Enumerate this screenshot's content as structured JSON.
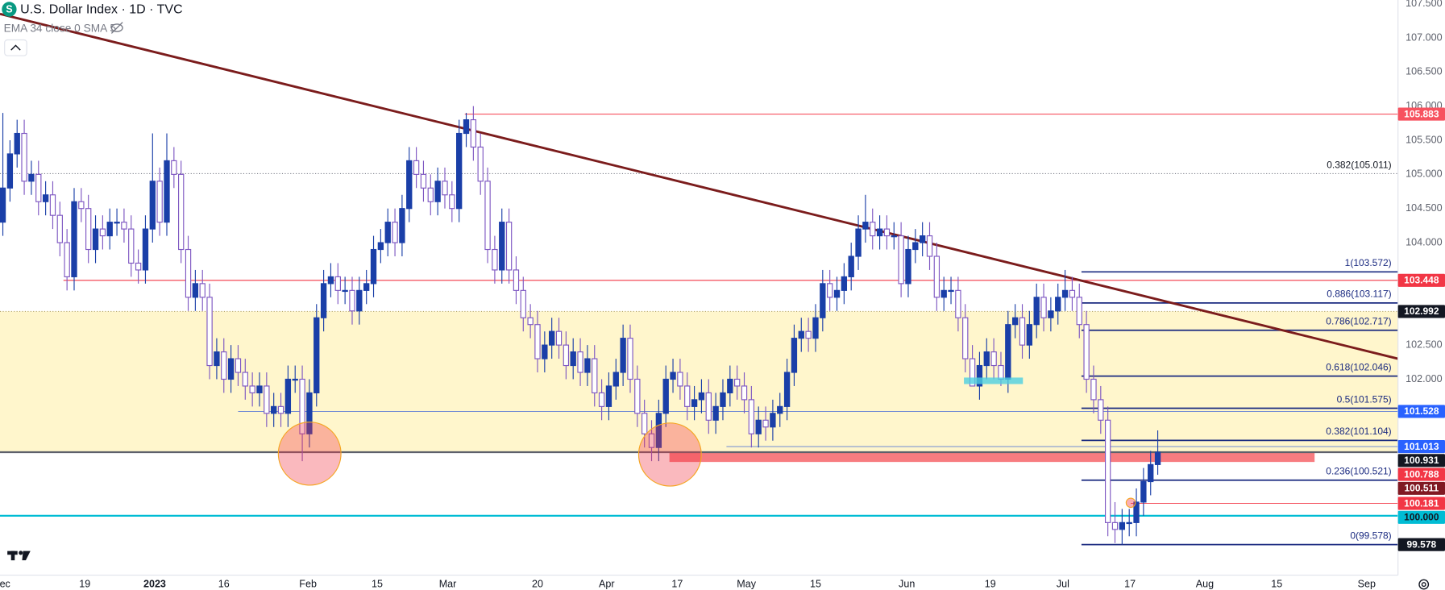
{
  "chart_data": {
    "type": "candlestick",
    "title": "U.S. Dollar Index · 1D · TVC",
    "subtitle": "EMA 34 close 0 SMA 5",
    "logo": "S",
    "up_color": "#1a3fa8",
    "down_color": "#7e57c2",
    "open": [
      104.3,
      104.8,
      105.3,
      105.6,
      104.9,
      105.0,
      104.6,
      104.7,
      104.4,
      104.0,
      103.5,
      104.6,
      104.5,
      103.9,
      104.2,
      104.1,
      104.3,
      104.3,
      104.2,
      103.7,
      103.6,
      104.2,
      104.9,
      104.3,
      105.2,
      105.0,
      103.9,
      103.2,
      103.4,
      103.2,
      102.2,
      102.4,
      102.0,
      102.3,
      102.1,
      101.9,
      101.8,
      101.9,
      101.5,
      101.6,
      101.5,
      102.0,
      102.0,
      101.2,
      101.8,
      102.9,
      103.4,
      103.5,
      103.3,
      103.3,
      103.0,
      103.3,
      103.4,
      103.9,
      104.0,
      104.3,
      104.0,
      104.5,
      105.2,
      105.0,
      104.8,
      104.6,
      104.9,
      104.7,
      104.5,
      105.6,
      105.8,
      105.4,
      104.9,
      103.9,
      103.6,
      104.3,
      103.6,
      103.3,
      102.9,
      102.8,
      102.3,
      102.5,
      102.7,
      102.5,
      102.2,
      102.4,
      102.1,
      102.3,
      101.8,
      101.6,
      101.9,
      102.1,
      102.6,
      102.0,
      101.5,
      101.2,
      101.0,
      101.5,
      102.0,
      102.1,
      101.9,
      101.6,
      101.7,
      101.8,
      101.4,
      101.6,
      101.8,
      102.0,
      101.9,
      101.7,
      101.2,
      101.4,
      101.3,
      101.5,
      101.6,
      102.1,
      102.6,
      102.7,
      102.6,
      102.9,
      103.4,
      103.2,
      103.3,
      103.5,
      103.8,
      104.2,
      104.3,
      104.1,
      104.2,
      104.1,
      104.1,
      103.4,
      103.9,
      104.0,
      104.1,
      103.8,
      103.2,
      103.3,
      103.3,
      102.9,
      102.3,
      101.9,
      102.2,
      102.4,
      102.2,
      102.0,
      102.8,
      102.9,
      102.5,
      102.8,
      103.2,
      102.9,
      103.0,
      103.2,
      103.3,
      103.2,
      102.8,
      102.0,
      101.7,
      101.4,
      99.9,
      99.8,
      99.9,
      99.9,
      100.2,
      100.5,
      100.75
    ],
    "high": [
      105.9,
      105.5,
      105.8,
      105.8,
      105.2,
      105.2,
      104.9,
      104.9,
      104.6,
      104.2,
      104.8,
      104.8,
      104.7,
      104.4,
      104.4,
      104.5,
      104.5,
      104.5,
      104.4,
      103.9,
      104.4,
      105.6,
      105.1,
      105.6,
      105.4,
      105.2,
      104.1,
      103.6,
      103.6,
      103.4,
      102.6,
      102.6,
      102.5,
      102.5,
      102.3,
      102.1,
      102.1,
      102.1,
      101.8,
      101.8,
      102.2,
      102.2,
      102.2,
      102.0,
      103.1,
      103.6,
      103.7,
      103.7,
      103.5,
      103.5,
      103.5,
      103.6,
      104.1,
      104.2,
      104.5,
      104.5,
      104.7,
      105.4,
      105.4,
      105.2,
      105.0,
      105.1,
      105.1,
      104.9,
      105.8,
      105.9,
      106.0,
      105.6,
      105.1,
      104.1,
      104.5,
      104.5,
      103.8,
      103.5,
      103.1,
      103.0,
      102.7,
      102.9,
      102.9,
      102.7,
      102.6,
      102.6,
      102.5,
      102.5,
      102.0,
      102.1,
      102.3,
      102.8,
      102.8,
      102.2,
      101.7,
      101.4,
      101.7,
      102.2,
      102.3,
      102.3,
      102.1,
      101.9,
      102.0,
      102.0,
      101.8,
      102.0,
      102.2,
      102.2,
      102.1,
      101.9,
      101.6,
      101.6,
      101.7,
      101.8,
      102.3,
      102.8,
      102.9,
      102.9,
      103.1,
      103.6,
      103.6,
      103.5,
      103.7,
      104.0,
      104.4,
      104.7,
      104.5,
      104.4,
      104.4,
      104.3,
      104.3,
      104.1,
      104.2,
      104.3,
      104.3,
      104.0,
      103.5,
      103.5,
      103.5,
      103.1,
      102.5,
      102.4,
      102.6,
      102.6,
      102.4,
      103.0,
      103.1,
      103.1,
      103.0,
      103.4,
      103.4,
      103.2,
      103.4,
      103.6,
      103.5,
      103.4,
      103.0,
      102.2,
      101.9,
      101.6,
      100.2,
      100.1,
      100.1,
      100.4,
      100.7,
      100.95,
      101.25
    ],
    "low": [
      104.1,
      104.6,
      105.1,
      104.7,
      104.7,
      104.4,
      104.4,
      104.2,
      103.8,
      103.3,
      103.3,
      104.3,
      103.7,
      103.7,
      103.9,
      103.9,
      104.1,
      104.0,
      103.5,
      103.4,
      103.4,
      104.0,
      104.1,
      104.1,
      104.8,
      103.7,
      103.0,
      103.0,
      103.0,
      102.0,
      102.0,
      101.8,
      101.8,
      101.9,
      101.7,
      101.6,
      101.6,
      101.3,
      101.3,
      101.3,
      101.3,
      101.8,
      100.8,
      101.0,
      101.6,
      102.7,
      103.2,
      103.1,
      103.1,
      102.8,
      102.8,
      103.1,
      103.2,
      103.7,
      103.8,
      103.8,
      103.8,
      104.3,
      104.8,
      104.6,
      104.4,
      104.4,
      104.5,
      104.3,
      104.3,
      105.4,
      105.2,
      104.7,
      103.7,
      103.4,
      103.4,
      103.4,
      103.1,
      102.7,
      102.6,
      102.1,
      102.1,
      102.3,
      102.3,
      102.0,
      102.0,
      101.9,
      101.9,
      101.6,
      101.4,
      101.4,
      101.7,
      101.9,
      101.8,
      101.3,
      101.0,
      100.8,
      100.8,
      101.3,
      101.8,
      101.7,
      101.4,
      101.4,
      101.5,
      101.2,
      101.2,
      101.4,
      101.6,
      101.7,
      101.5,
      101.0,
      101.0,
      101.1,
      101.1,
      101.3,
      101.4,
      101.9,
      102.4,
      102.4,
      102.4,
      102.7,
      103.0,
      103.0,
      103.1,
      103.3,
      103.6,
      104.0,
      103.9,
      103.9,
      103.9,
      103.9,
      103.2,
      103.2,
      103.7,
      103.8,
      103.6,
      103.0,
      103.0,
      103.1,
      102.7,
      102.1,
      101.9,
      101.7,
      102.0,
      102.0,
      101.9,
      101.8,
      102.6,
      102.3,
      102.3,
      102.6,
      102.7,
      102.7,
      102.8,
      103.0,
      103.0,
      102.6,
      101.8,
      101.5,
      101.2,
      99.7,
      99.6,
      99.58,
      99.7,
      99.7,
      100.0,
      100.3,
      100.6
    ],
    "close": [
      104.8,
      105.3,
      105.6,
      104.9,
      105.0,
      104.6,
      104.7,
      104.4,
      104.0,
      103.5,
      104.6,
      104.5,
      103.9,
      104.2,
      104.1,
      104.3,
      104.3,
      104.2,
      103.7,
      103.6,
      104.2,
      104.9,
      104.3,
      105.2,
      105.0,
      103.9,
      103.2,
      103.4,
      103.2,
      102.2,
      102.4,
      102.0,
      102.3,
      102.1,
      101.9,
      101.8,
      101.9,
      101.5,
      101.6,
      101.5,
      102.0,
      102.0,
      101.2,
      101.8,
      102.9,
      103.4,
      103.5,
      103.3,
      103.3,
      103.0,
      103.3,
      103.4,
      103.9,
      104.0,
      104.3,
      104.0,
      104.5,
      105.2,
      105.0,
      104.8,
      104.6,
      104.9,
      104.7,
      104.5,
      105.6,
      105.8,
      105.4,
      104.9,
      103.9,
      103.6,
      104.3,
      103.6,
      103.3,
      102.9,
      102.8,
      102.3,
      102.5,
      102.7,
      102.5,
      102.2,
      102.4,
      102.1,
      102.3,
      101.8,
      101.6,
      101.9,
      102.1,
      102.6,
      102.0,
      101.5,
      101.2,
      101.0,
      101.5,
      102.0,
      102.1,
      101.9,
      101.6,
      101.7,
      101.8,
      101.4,
      101.6,
      101.8,
      102.0,
      101.9,
      101.7,
      101.2,
      101.4,
      101.3,
      101.5,
      101.6,
      102.1,
      102.6,
      102.7,
      102.6,
      102.9,
      103.4,
      103.2,
      103.3,
      103.5,
      103.8,
      104.2,
      104.3,
      104.1,
      104.2,
      104.1,
      104.1,
      103.4,
      103.9,
      104.0,
      104.1,
      103.8,
      103.2,
      103.3,
      103.3,
      102.9,
      102.3,
      101.9,
      102.2,
      102.4,
      102.2,
      102.0,
      102.8,
      102.9,
      102.5,
      102.8,
      103.2,
      102.9,
      103.0,
      103.2,
      103.3,
      103.2,
      102.8,
      102.0,
      101.7,
      101.4,
      99.9,
      99.8,
      99.9,
      99.9,
      100.2,
      100.5,
      100.75,
      100.931
    ],
    "xlim": [
      -0.4,
      195.7
    ],
    "xticks": [
      {
        "value": 0.3,
        "label": "ec"
      },
      {
        "value": 11.5,
        "label": "19"
      },
      {
        "value": 21.3,
        "label": "2023"
      },
      {
        "value": 31.0,
        "label": "16"
      },
      {
        "value": 42.8,
        "label": "Feb"
      },
      {
        "value": 52.5,
        "label": "15"
      },
      {
        "value": 62.4,
        "label": "Mar"
      },
      {
        "value": 75.0,
        "label": "20"
      },
      {
        "value": 84.7,
        "label": "Apr"
      },
      {
        "value": 94.6,
        "label": "17"
      },
      {
        "value": 104.3,
        "label": "May"
      },
      {
        "value": 114.0,
        "label": "15"
      },
      {
        "value": 126.8,
        "label": "Jun"
      },
      {
        "value": 138.5,
        "label": "19"
      },
      {
        "value": 148.7,
        "label": "Jul"
      },
      {
        "value": 158.1,
        "label": "17"
      },
      {
        "value": 168.6,
        "label": "Aug"
      },
      {
        "value": 178.7,
        "label": "15"
      },
      {
        "value": 191.3,
        "label": "Sep"
      }
    ],
    "ylim": [
      99.13,
      107.554
    ],
    "yticks": [
      {
        "value": 107.5,
        "label": "107.500"
      },
      {
        "value": 107,
        "label": "107.000"
      },
      {
        "value": 106.5,
        "label": "106.500"
      },
      {
        "value": 106,
        "label": "106.000"
      },
      {
        "value": 105.5,
        "label": "105.500"
      },
      {
        "value": 105,
        "label": "105.000"
      },
      {
        "value": 104.5,
        "label": "104.500"
      },
      {
        "value": 104,
        "label": "104.000"
      },
      {
        "value": 102.5,
        "label": "102.500"
      },
      {
        "value": 102,
        "label": "102.000"
      }
    ],
    "price_labels": [
      {
        "value": 105.883,
        "label": "105.883",
        "color": "#f7525f"
      },
      {
        "value": 103.448,
        "label": "103.448",
        "color": "#f23645"
      },
      {
        "value": 102.992,
        "label": "102.992",
        "color": "#131722"
      },
      {
        "value": 101.528,
        "label": "101.528",
        "color": "#2962ff"
      },
      {
        "value": 101.013,
        "label": "101.013",
        "color": "#2962ff"
      },
      {
        "value": 100.931,
        "label": "100.931",
        "color": "#131722"
      },
      {
        "value": 100.788,
        "label": "100.788",
        "color": "#f23645"
      },
      {
        "value": 100.511,
        "label": "100.511",
        "color": "#801922"
      },
      {
        "value": 100.181,
        "label": "100.181",
        "color": "#f23645"
      },
      {
        "value": 100.0,
        "label": "100.000",
        "color": "#00bcd4"
      },
      {
        "value": 99.578,
        "label": "99.578",
        "color": "#131722"
      }
    ],
    "fib_color": "#1a2a80",
    "fib": [
      {
        "value": 103.572,
        "label": "1(103.572)"
      },
      {
        "value": 103.117,
        "label": "0.886(103.117)"
      },
      {
        "value": 102.717,
        "label": "0.786(102.717)"
      },
      {
        "value": 102.046,
        "label": "0.618(102.046)"
      },
      {
        "value": 101.575,
        "label": "0.5(101.575)"
      },
      {
        "value": 101.104,
        "label": "0.382(101.104)"
      },
      {
        "value": 100.521,
        "label": "0.236(100.521)"
      },
      {
        "value": 99.578,
        "label": "0(99.578)"
      }
    ],
    "fib_upper": {
      "value": 105.011,
      "label": "0.382(105.011)"
    },
    "trendline": {
      "x": [
        -0.4,
        195.7
      ],
      "y": [
        107.35,
        102.3
      ],
      "color": "#7b1c1c"
    }
  }
}
